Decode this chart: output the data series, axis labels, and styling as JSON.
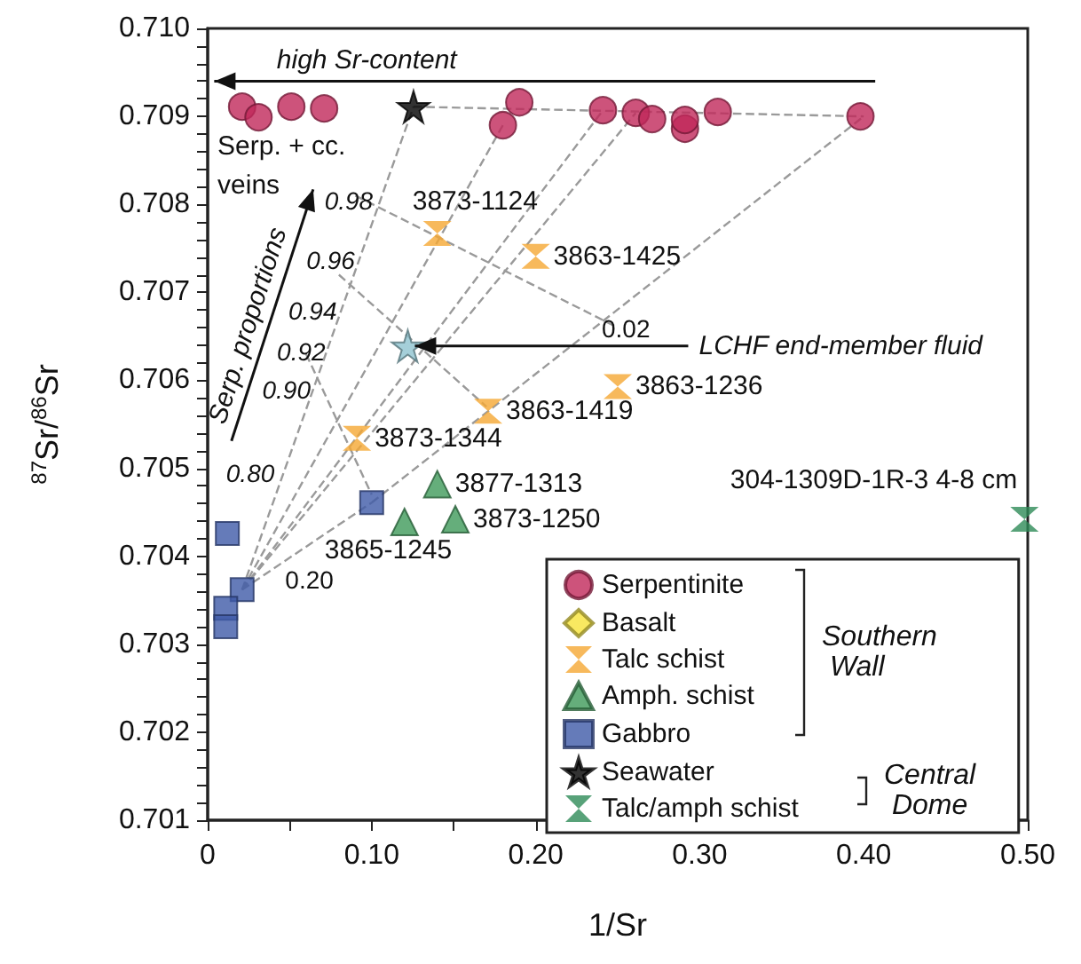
{
  "chart_data": {
    "type": "scatter",
    "xlabel": "1/Sr",
    "ylabel": "$^{87}$Sr/$^{86}$Sr",
    "xlim": [
      0,
      0.5
    ],
    "ylim": [
      0.701,
      0.71
    ],
    "xticks": [
      0,
      {
        "value": 0.05,
        "label": null
      },
      {
        "value": 0.1,
        "label": "0.10"
      },
      {
        "value": 0.15,
        "label": null
      },
      {
        "value": 0.2,
        "label": "0.20"
      },
      {
        "value": 0.25,
        "label": null
      },
      {
        "value": 0.3,
        "label": "0.30"
      },
      {
        "value": 0.35,
        "label": null
      },
      {
        "value": 0.4,
        "label": "0.40"
      },
      {
        "value": 0.45,
        "label": null
      },
      {
        "value": 0.5,
        "label": "0.50"
      }
    ],
    "yticks": [
      0.701,
      {
        "value": 0.7012,
        "label": null
      },
      {
        "value": 0.7014,
        "label": null
      },
      {
        "value": 0.7016,
        "label": null
      },
      {
        "value": 0.7018,
        "label": null
      },
      0.702,
      {
        "value": 0.7022,
        "label": null
      },
      {
        "value": 0.7024,
        "label": null
      },
      {
        "value": 0.7026,
        "label": null
      },
      {
        "value": 0.7028,
        "label": null
      },
      0.703,
      {
        "value": 0.7032,
        "label": null
      },
      {
        "value": 0.7034,
        "label": null
      },
      {
        "value": 0.7036,
        "label": null
      },
      {
        "value": 0.7038,
        "label": null
      },
      0.704,
      {
        "value": 0.7042,
        "label": null
      },
      {
        "value": 0.7044,
        "label": null
      },
      {
        "value": 0.7046,
        "label": null
      },
      {
        "value": 0.7048,
        "label": null
      },
      0.705,
      {
        "value": 0.7052,
        "label": null
      },
      {
        "value": 0.7054,
        "label": null
      },
      {
        "value": 0.7056,
        "label": null
      },
      {
        "value": 0.7058,
        "label": null
      },
      0.706,
      {
        "value": 0.7062,
        "label": null
      },
      {
        "value": 0.7064,
        "label": null
      },
      {
        "value": 0.7066,
        "label": null
      },
      {
        "value": 0.7068,
        "label": null
      },
      0.707,
      {
        "value": 0.7072,
        "label": null
      },
      {
        "value": 0.7074,
        "label": null
      },
      {
        "value": 0.7076,
        "label": null
      },
      {
        "value": 0.7078,
        "label": null
      },
      0.708,
      {
        "value": 0.7082,
        "label": null
      },
      {
        "value": 0.7084,
        "label": null
      },
      {
        "value": 0.7086,
        "label": null
      },
      {
        "value": 0.7088,
        "label": null
      },
      0.709,
      {
        "value": 0.7092,
        "label": null
      },
      {
        "value": 0.7094,
        "label": null
      },
      {
        "value": 0.7096,
        "label": null
      },
      {
        "value": 0.7098,
        "label": null
      },
      {
        "value": 0.71,
        "label": "0.710"
      }
    ],
    "legend": "bottom right",
    "annotations": [
      {
        "text": "LCHF end-member fluid",
        "x": 0.122,
        "y": 0.70639
      },
      {
        "text": "3873-1124",
        "x": 0.14,
        "y": 0.70767
      },
      {
        "text": "3863-1425",
        "x": 0.2,
        "y": 0.70741
      },
      {
        "text": "3863-1236",
        "x": 0.25,
        "y": 0.70593
      },
      {
        "text": "3863-1419",
        "x": 0.171,
        "y": 0.70565
      },
      {
        "text": "3873-1344",
        "x": 0.091,
        "y": 0.70534
      },
      {
        "text": "3877-1313",
        "x": 0.14,
        "y": 0.70482
      },
      {
        "text": "3873-1250",
        "x": 0.151,
        "y": 0.70442
      },
      {
        "text": "3865-1245",
        "x": 0.12,
        "y": 0.70439
      },
      {
        "text": "304-1309D-1R-3 4-8 cm",
        "x": 0.498,
        "y": 0.70442
      },
      "high Sr-content",
      "Serp. + cc. veins",
      "Serp. proportions",
      "0.98",
      "0.96",
      "0.94",
      "0.92",
      "0.90",
      "0.80",
      "0.20",
      "0.02",
      "Southern Wall",
      "Central Dome"
    ],
    "series": [
      {
        "type": "line",
        "color": "#9a9a9a",
        "line_style": "dashed",
        "marker": "none",
        "x": [
          0.021,
          0.1255
        ],
        "values": [
          0.70362,
          0.70911
        ]
      },
      {
        "type": "line",
        "color": "#9a9a9a",
        "line_style": "dashed",
        "marker": "none",
        "x": [
          0.021,
          0.18
        ],
        "values": [
          0.70362,
          0.7089
        ]
      },
      {
        "type": "line",
        "color": "#9a9a9a",
        "line_style": "dashed",
        "marker": "none",
        "x": [
          0.021,
          0.241
        ],
        "values": [
          0.70362,
          0.70907
        ]
      },
      {
        "type": "line",
        "color": "#9a9a9a",
        "line_style": "dashed",
        "marker": "none",
        "x": [
          0.021,
          0.261
        ],
        "values": [
          0.70362,
          0.70904
        ]
      },
      {
        "type": "line",
        "color": "#9a9a9a",
        "line_style": "dashed",
        "marker": "none",
        "x": [
          0.021,
          0.1
        ],
        "values": [
          0.70362,
          0.70461
        ]
      },
      {
        "type": "line",
        "color": "#9a9a9a",
        "line_style": "dashed",
        "marker": "none",
        "x": [
          0.1,
          0.4
        ],
        "values": [
          0.70461,
          0.709
        ]
      },
      {
        "type": "line",
        "color": "#9a9a9a",
        "line_style": "dashed",
        "marker": "none",
        "x": [
          0.1255,
          0.4
        ],
        "values": [
          0.70911,
          0.709
        ]
      },
      {
        "type": "line",
        "color": "#9a9a9a",
        "line_style": "dashed",
        "marker": "none",
        "x": [
          0.09,
          0.25
        ],
        "values": [
          0.7081,
          0.7066
        ]
      },
      {
        "type": "line",
        "color": "#9a9a9a",
        "line_style": "dashed",
        "marker": "none",
        "x": [
          0.08,
          0.17
        ],
        "values": [
          0.7072,
          0.7057
        ]
      },
      {
        "type": "line",
        "color": "#9a9a9a",
        "line_style": "dashed",
        "marker": "none",
        "x": [
          0.06,
          0.1
        ],
        "values": [
          0.7063,
          0.7047
        ]
      },
      {
        "name": "Serpentinite",
        "color": "#c0285a",
        "marker": "circle",
        "x": [
          0.021,
          0.031,
          0.051,
          0.071,
          0.18,
          0.19,
          0.241,
          0.261,
          0.271,
          0.291,
          0.291,
          0.311,
          0.398
        ],
        "values": [
          0.70911,
          0.70899,
          0.70911,
          0.70909,
          0.7089,
          0.70916,
          0.70907,
          0.70904,
          0.70897,
          0.70886,
          0.70896,
          0.70905,
          0.709
        ]
      },
      {
        "name": "Basalt",
        "color": "#f7e43a",
        "marker": "diamond"
      },
      {
        "name": "Talc schist",
        "color": "#f5a833",
        "x": [
          0.14,
          0.2,
          0.25,
          0.171,
          0.091
        ],
        "values": [
          0.70767,
          0.70741,
          0.70593,
          0.70565,
          0.70534
        ]
      },
      {
        "name": "Amph. schist",
        "color": "#3f9a5a",
        "marker": "triangle",
        "x": [
          0.14,
          0.12,
          0.151
        ],
        "values": [
          0.70482,
          0.70439,
          0.70442
        ]
      },
      {
        "name": "Gabbro",
        "color": "#3f5aa8",
        "marker": "square",
        "x": [
          0.012,
          0.1,
          0.021,
          0.011,
          0.011
        ],
        "values": [
          0.70426,
          0.70461,
          0.70362,
          0.70341,
          0.7032
        ]
      },
      {
        "name": "Seawater",
        "color": "#000000",
        "marker": "star",
        "x": [
          0.1255
        ],
        "values": [
          0.70911
        ]
      },
      {
        "color": "#8fc3cf",
        "marker": "star",
        "x": [
          0.122
        ],
        "values": [
          0.70639
        ]
      },
      {
        "name": "Talc/amph schist",
        "color": "#2e8b57",
        "x": [
          0.498
        ],
        "values": [
          0.70442
        ]
      }
    ]
  }
}
